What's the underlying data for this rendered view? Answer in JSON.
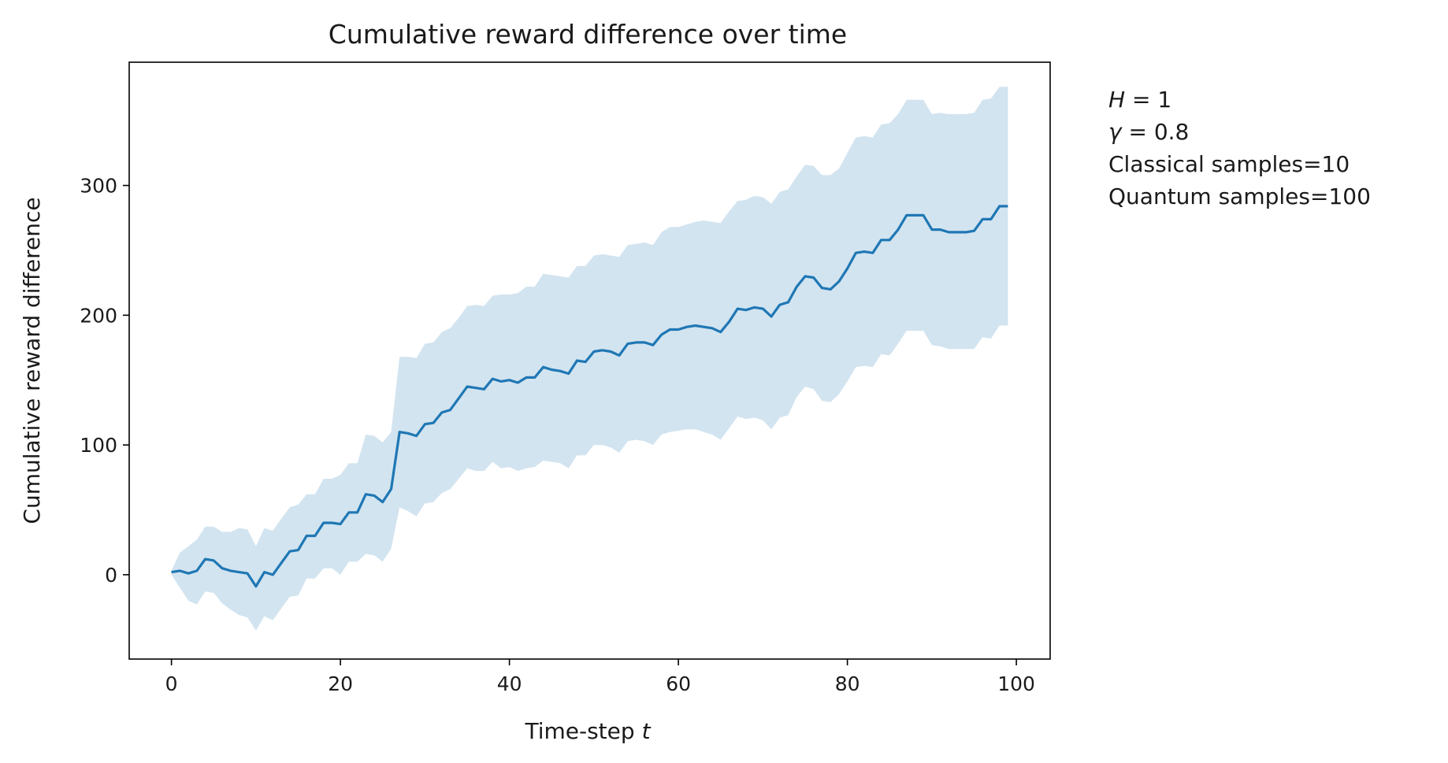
{
  "chart_data": {
    "type": "line",
    "title": "Cumulative reward difference over time",
    "xlabel": "Time-step",
    "xlabel_var": "t",
    "ylabel": "Cumulative reward difference",
    "xlim": [
      -5,
      104
    ],
    "ylim": [
      -65,
      395
    ],
    "xticks": [
      0,
      20,
      40,
      60,
      80,
      100
    ],
    "yticks": [
      0,
      100,
      200,
      300
    ],
    "grid": false,
    "colors": {
      "line": "#1f77b4",
      "band": "#1f77b4"
    },
    "band_opacity": 0.2,
    "annotations": {
      "H_var": "H",
      "H_value": " = 1",
      "gamma_var": "γ",
      "gamma_value": " = 0.8",
      "classical": "Classical samples=10",
      "quantum": "Quantum samples=100"
    },
    "series": [
      {
        "x": [
          0,
          1,
          2,
          3,
          4,
          5,
          6,
          7,
          8,
          9,
          10,
          11,
          12,
          13,
          14,
          15,
          16,
          17,
          18,
          19,
          20,
          21,
          22,
          23,
          24,
          25,
          26,
          27,
          28,
          29,
          30,
          31,
          32,
          33,
          34,
          35,
          36,
          37,
          38,
          39,
          40,
          41,
          42,
          43,
          44,
          45,
          46,
          47,
          48,
          49,
          50,
          51,
          52,
          53,
          54,
          55,
          56,
          57,
          58,
          59,
          60,
          61,
          62,
          63,
          64,
          65,
          66,
          67,
          68,
          69,
          70,
          71,
          72,
          73,
          74,
          75,
          76,
          77,
          78,
          79,
          80,
          81,
          82,
          83,
          84,
          85,
          86,
          87,
          88,
          89,
          90,
          91,
          92,
          93,
          94,
          95,
          96,
          97,
          98,
          99
        ],
        "mean": [
          2,
          3,
          1,
          3,
          12,
          11,
          5,
          3,
          2,
          1,
          -9,
          2,
          0,
          9,
          18,
          19,
          30,
          30,
          40,
          40,
          39,
          48,
          48,
          62,
          61,
          56,
          66,
          110,
          109,
          107,
          116,
          117,
          125,
          127,
          136,
          145,
          144,
          143,
          151,
          149,
          150,
          148,
          152,
          152,
          160,
          158,
          157,
          155,
          165,
          164,
          172,
          173,
          172,
          169,
          178,
          179,
          179,
          177,
          185,
          189,
          189,
          191,
          192,
          191,
          190,
          187,
          195,
          205,
          204,
          206,
          205,
          199,
          208,
          210,
          222,
          230,
          229,
          221,
          220,
          226,
          236,
          248,
          249,
          248,
          258,
          258,
          266,
          277,
          277,
          277,
          266,
          266,
          264,
          264,
          264,
          265,
          274,
          274,
          284,
          284
        ],
        "upper": [
          3,
          17,
          22,
          27,
          37,
          37,
          33,
          33,
          36,
          35,
          22,
          36,
          34,
          43,
          52,
          54,
          62,
          62,
          74,
          74,
          77,
          86,
          86,
          108,
          107,
          102,
          110,
          168,
          168,
          167,
          178,
          179,
          187,
          190,
          198,
          207,
          208,
          207,
          215,
          216,
          216,
          217,
          222,
          222,
          232,
          231,
          230,
          229,
          238,
          238,
          246,
          247,
          246,
          245,
          254,
          255,
          256,
          254,
          264,
          268,
          268,
          270,
          272,
          273,
          272,
          271,
          280,
          288,
          289,
          292,
          291,
          286,
          295,
          297,
          307,
          316,
          315,
          308,
          308,
          313,
          325,
          337,
          338,
          337,
          347,
          348,
          355,
          366,
          366,
          366,
          355,
          356,
          355,
          355,
          355,
          356,
          366,
          367,
          376,
          376
        ],
        "lower": [
          0,
          -10,
          -20,
          -23,
          -13,
          -14,
          -22,
          -27,
          -31,
          -33,
          -43,
          -32,
          -35,
          -26,
          -17,
          -16,
          -3,
          -3,
          5,
          5,
          0,
          10,
          10,
          16,
          15,
          10,
          20,
          52,
          49,
          45,
          55,
          56,
          63,
          66,
          74,
          82,
          80,
          80,
          87,
          82,
          83,
          80,
          82,
          83,
          88,
          87,
          86,
          82,
          92,
          92,
          100,
          100,
          98,
          94,
          103,
          104,
          103,
          100,
          108,
          110,
          111,
          112,
          112,
          110,
          108,
          104,
          113,
          122,
          120,
          121,
          119,
          112,
          121,
          123,
          137,
          145,
          143,
          134,
          133,
          139,
          149,
          160,
          161,
          160,
          170,
          169,
          178,
          188,
          188,
          188,
          177,
          176,
          174,
          174,
          174,
          174,
          183,
          182,
          192,
          192
        ]
      }
    ]
  }
}
